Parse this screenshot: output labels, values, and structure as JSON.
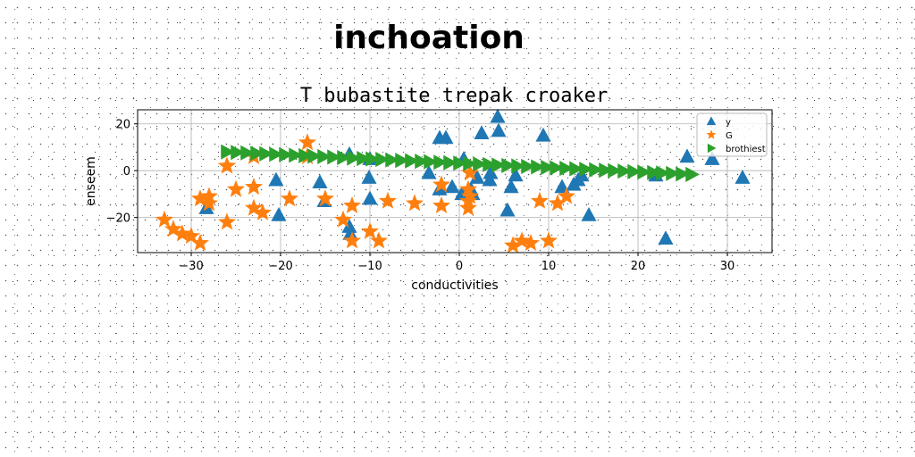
{
  "page": {
    "title": "inchoation"
  },
  "chart_data": {
    "type": "scatter",
    "title": "T bubastite trepak croaker",
    "xlabel": "conductivities",
    "ylabel": "enseem",
    "xlim": [
      -36,
      35
    ],
    "ylim": [
      -35,
      26
    ],
    "xticks": [
      -30,
      -20,
      -10,
      0,
      10,
      20,
      30
    ],
    "xtick_labels": [
      "−30",
      "−20",
      "−10",
      "0",
      "10",
      "20",
      "30"
    ],
    "yticks": [
      -20,
      0,
      20
    ],
    "ytick_labels": [
      "−20",
      "0",
      "20"
    ],
    "grid": true,
    "legend_position": "top-right",
    "series": [
      {
        "name": "y",
        "marker": "triangle-up",
        "color": "#1f77b4",
        "points": [
          [
            4.3,
            23
          ],
          [
            4.4,
            17
          ],
          [
            2.5,
            16
          ],
          [
            -2.2,
            14
          ],
          [
            -1.5,
            14
          ],
          [
            9.4,
            15
          ],
          [
            -12.3,
            7
          ],
          [
            -10,
            5
          ],
          [
            0.5,
            5
          ],
          [
            -3.4,
            -1
          ],
          [
            -10.1,
            -3
          ],
          [
            -20.5,
            -4
          ],
          [
            -15.6,
            -5
          ],
          [
            2,
            -3
          ],
          [
            3.5,
            -1
          ],
          [
            3.4,
            -4
          ],
          [
            -2.2,
            -8
          ],
          [
            -0.8,
            -7
          ],
          [
            1.3,
            -8
          ],
          [
            1.5,
            -10
          ],
          [
            6.3,
            -2
          ],
          [
            5.8,
            -7
          ],
          [
            11.5,
            -7
          ],
          [
            12.8,
            -6
          ],
          [
            13.7,
            -2
          ],
          [
            13.3,
            -4
          ],
          [
            -10,
            -12
          ],
          [
            -12.3,
            -24
          ],
          [
            -12.2,
            -27
          ],
          [
            -20.2,
            -19
          ],
          [
            5.4,
            -17
          ],
          [
            14.5,
            -19
          ],
          [
            -15.1,
            -13
          ],
          [
            -28.3,
            -16
          ],
          [
            23.1,
            -29
          ],
          [
            25.5,
            6
          ],
          [
            28.3,
            5
          ],
          [
            31.7,
            -3
          ],
          [
            22,
            -2
          ],
          [
            0.3,
            -10
          ]
        ]
      },
      {
        "name": "G",
        "marker": "star",
        "color": "#ff7f0e",
        "points": [
          [
            -17,
            12
          ],
          [
            -17,
            6
          ],
          [
            -26,
            2
          ],
          [
            -23,
            6
          ],
          [
            1.2,
            -1
          ],
          [
            -2,
            -6
          ],
          [
            -26,
            2
          ],
          [
            -25,
            -8
          ],
          [
            -23,
            -7
          ],
          [
            -19,
            -12
          ],
          [
            -29,
            -12
          ],
          [
            -28,
            -11
          ],
          [
            -28,
            -14
          ],
          [
            -23,
            -16
          ],
          [
            -22,
            -18
          ],
          [
            -15,
            -12
          ],
          [
            -13,
            -21
          ],
          [
            -12,
            -15
          ],
          [
            -8,
            -13
          ],
          [
            -5,
            -14
          ],
          [
            -2,
            -15
          ],
          [
            1,
            -13
          ],
          [
            1,
            -8
          ],
          [
            1.2,
            -11
          ],
          [
            1,
            -16
          ],
          [
            -26,
            -22
          ],
          [
            -33,
            -21
          ],
          [
            -32,
            -25
          ],
          [
            -31,
            -27
          ],
          [
            -30,
            -28
          ],
          [
            -29,
            -31
          ],
          [
            -12,
            -30
          ],
          [
            -9,
            -30
          ],
          [
            -10,
            -26
          ],
          [
            6,
            -32
          ],
          [
            7,
            -30
          ],
          [
            8,
            -31
          ],
          [
            10,
            -30
          ],
          [
            9,
            -13
          ],
          [
            11,
            -14
          ],
          [
            12,
            -11
          ]
        ]
      },
      {
        "name": "brothiest",
        "marker": "triangle-right",
        "color": "#2ca02c",
        "points": [
          [
            -26.0,
            8.0
          ],
          [
            -24.9,
            7.8
          ],
          [
            -23.8,
            7.6
          ],
          [
            -22.7,
            7.4
          ],
          [
            -21.7,
            7.2
          ],
          [
            -20.6,
            7.0
          ],
          [
            -19.5,
            6.8
          ],
          [
            -18.4,
            6.6
          ],
          [
            -17.3,
            6.4
          ],
          [
            -16.3,
            6.2
          ],
          [
            -15.2,
            6.0
          ],
          [
            -14.1,
            5.8
          ],
          [
            -13.0,
            5.6
          ],
          [
            -11.9,
            5.4
          ],
          [
            -10.8,
            5.2
          ],
          [
            -9.8,
            5.0
          ],
          [
            -8.7,
            4.8
          ],
          [
            -7.6,
            4.6
          ],
          [
            -6.5,
            4.4
          ],
          [
            -5.4,
            4.2
          ],
          [
            -4.3,
            4.0
          ],
          [
            -3.3,
            3.8
          ],
          [
            -2.2,
            3.6
          ],
          [
            -1.1,
            3.4
          ],
          [
            0.0,
            3.2
          ],
          [
            1.1,
            3.0
          ],
          [
            2.2,
            2.8
          ],
          [
            3.3,
            2.6
          ],
          [
            4.3,
            2.4
          ],
          [
            5.4,
            2.2
          ],
          [
            6.5,
            2.0
          ],
          [
            7.6,
            1.8
          ],
          [
            8.7,
            1.6
          ],
          [
            9.8,
            1.4
          ],
          [
            10.8,
            1.2
          ],
          [
            11.9,
            1.0
          ],
          [
            13.0,
            0.8
          ],
          [
            14.1,
            0.6
          ],
          [
            15.2,
            0.4
          ],
          [
            16.3,
            0.2
          ],
          [
            17.3,
            0.0
          ],
          [
            18.4,
            -0.2
          ],
          [
            19.5,
            -0.4
          ],
          [
            20.6,
            -0.6
          ],
          [
            21.7,
            -0.8
          ],
          [
            22.7,
            -1.0
          ],
          [
            23.8,
            -1.2
          ],
          [
            24.9,
            -1.4
          ],
          [
            26.0,
            -1.6
          ]
        ]
      }
    ]
  }
}
